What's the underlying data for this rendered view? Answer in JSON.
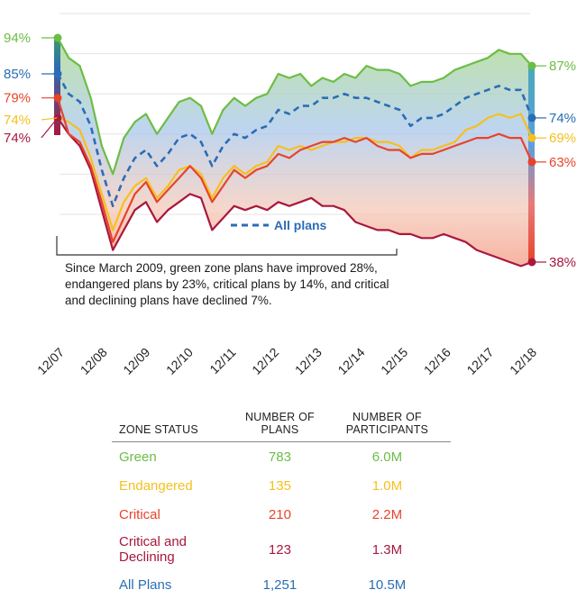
{
  "chart_data": {
    "type": "line",
    "x_ticks": [
      "12/07",
      "12/08",
      "12/09",
      "12/10",
      "12/11",
      "12/12",
      "12/13",
      "12/14",
      "12/15",
      "12/16",
      "12/17",
      "12/18"
    ],
    "series": [
      {
        "name": "Green",
        "color": "#6cbd45",
        "start_label": "94%",
        "end_label": "87%",
        "values": [
          94,
          89,
          87,
          79,
          67,
          60,
          69,
          73,
          75,
          70,
          74,
          78,
          79,
          77,
          70,
          76,
          79,
          77,
          79,
          80,
          85,
          84,
          85,
          82,
          84,
          83,
          85,
          84,
          87,
          86,
          86,
          85,
          82,
          83,
          83,
          84,
          86,
          87,
          88,
          89,
          91,
          90,
          90,
          87
        ]
      },
      {
        "name": "Endangered",
        "color": "#f4c020",
        "start_label": "74%",
        "end_label": "69%",
        "values": [
          74,
          73,
          71,
          64,
          55,
          46,
          53,
          57,
          59,
          54,
          57,
          61,
          62,
          60,
          54,
          59,
          62,
          60,
          62,
          63,
          67,
          66,
          67,
          66,
          67,
          68,
          68,
          69,
          69,
          68,
          68,
          67,
          64,
          66,
          66,
          67,
          68,
          71,
          72,
          74,
          75,
          74,
          75,
          69
        ]
      },
      {
        "name": "Critical",
        "color": "#e8432a",
        "start_label": "79%",
        "end_label": "63%",
        "values": [
          79,
          70,
          68,
          62,
          53,
          43,
          49,
          55,
          58,
          53,
          56,
          59,
          62,
          59,
          53,
          57,
          61,
          59,
          61,
          62,
          65,
          64,
          66,
          67,
          68,
          68,
          69,
          68,
          69,
          67,
          66,
          66,
          64,
          65,
          65,
          66,
          67,
          68,
          69,
          69,
          70,
          69,
          69,
          63
        ]
      },
      {
        "name": "Critical and Declining",
        "color": "#a8183d",
        "start_label": "74%",
        "end_label": "38%",
        "values": [
          74,
          70,
          67,
          61,
          51,
          41,
          46,
          51,
          53,
          48,
          51,
          53,
          55,
          54,
          46,
          49,
          52,
          51,
          52,
          51,
          53,
          52,
          53,
          54,
          52,
          52,
          51,
          48,
          47,
          46,
          46,
          45,
          45,
          44,
          44,
          45,
          44,
          43,
          41,
          40,
          39,
          38,
          37,
          38
        ]
      },
      {
        "name": "All plans",
        "color": "#2a6db5",
        "dashed": true,
        "start_label": "85%",
        "end_label": "74%",
        "values": [
          85,
          80,
          78,
          72,
          61,
          52,
          59,
          64,
          66,
          62,
          65,
          69,
          70,
          68,
          62,
          67,
          70,
          69,
          71,
          72,
          76,
          75,
          77,
          77,
          79,
          79,
          80,
          79,
          79,
          78,
          77,
          76,
          72,
          74,
          74,
          75,
          77,
          79,
          80,
          81,
          82,
          81,
          81,
          74
        ]
      }
    ],
    "legend": {
      "label": "All plans",
      "line": "dashed"
    },
    "annotation": "Since March 2009, green zone plans have improved 28%, endangered plans by 23%, critical plans by 14%, and critical and declining plans have declined 7%.",
    "grid": true,
    "fill_between": [
      "Green",
      "Critical and Declining"
    ]
  },
  "table": {
    "headers": [
      "ZONE STATUS",
      "NUMBER OF PLANS",
      "NUMBER OF PARTICIPANTS"
    ],
    "rows": [
      {
        "zone": "Green",
        "plans": "783",
        "participants": "6.0M",
        "color": "#6cbd45"
      },
      {
        "zone": "Endangered",
        "plans": "135",
        "participants": "1.0M",
        "color": "#f4c020"
      },
      {
        "zone": "Critical",
        "plans": "210",
        "participants": "2.2M",
        "color": "#e8432a"
      },
      {
        "zone": "Critical and Declining",
        "plans": "123",
        "participants": "1.3M",
        "color": "#a8183d"
      },
      {
        "zone": "All Plans",
        "plans": "1,251",
        "participants": "10.5M",
        "color": "#2a6db5"
      }
    ]
  }
}
